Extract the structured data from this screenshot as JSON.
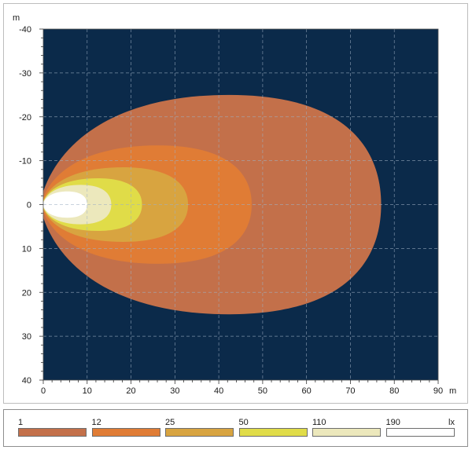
{
  "chart_data": {
    "type": "heatmap",
    "x_unit_label": "m",
    "y_unit_label": "m",
    "xlim": [
      0,
      90
    ],
    "ylim": [
      -40,
      40
    ],
    "y_inverted": true,
    "x_ticks": [
      0,
      10,
      20,
      30,
      40,
      50,
      60,
      70,
      80,
      90
    ],
    "y_ticks": [
      -40,
      -30,
      -20,
      -10,
      0,
      10,
      20,
      30,
      40
    ],
    "grid": true,
    "background_color": "#0b2a4a",
    "legend_unit": "lx",
    "levels": [
      {
        "label": "1",
        "value": 1,
        "color": "#c3704a",
        "reach_x": 77,
        "half_width_max": 25
      },
      {
        "label": "12",
        "value": 12,
        "color": "#e07c35",
        "reach_x": 47.5,
        "half_width_max": 13.5
      },
      {
        "label": "25",
        "value": 25,
        "color": "#d8a440",
        "reach_x": 33,
        "half_width_max": 8.5
      },
      {
        "label": "50",
        "value": 50,
        "color": "#e0dc48",
        "reach_x": 22.5,
        "half_width_max": 6
      },
      {
        "label": "110",
        "value": 110,
        "color": "#ece8bc",
        "reach_x": 15.5,
        "half_width_max": 4.5
      },
      {
        "label": "190",
        "value": 190,
        "color": "#ffffff",
        "reach_x": 10,
        "half_width_max": 3
      }
    ]
  }
}
